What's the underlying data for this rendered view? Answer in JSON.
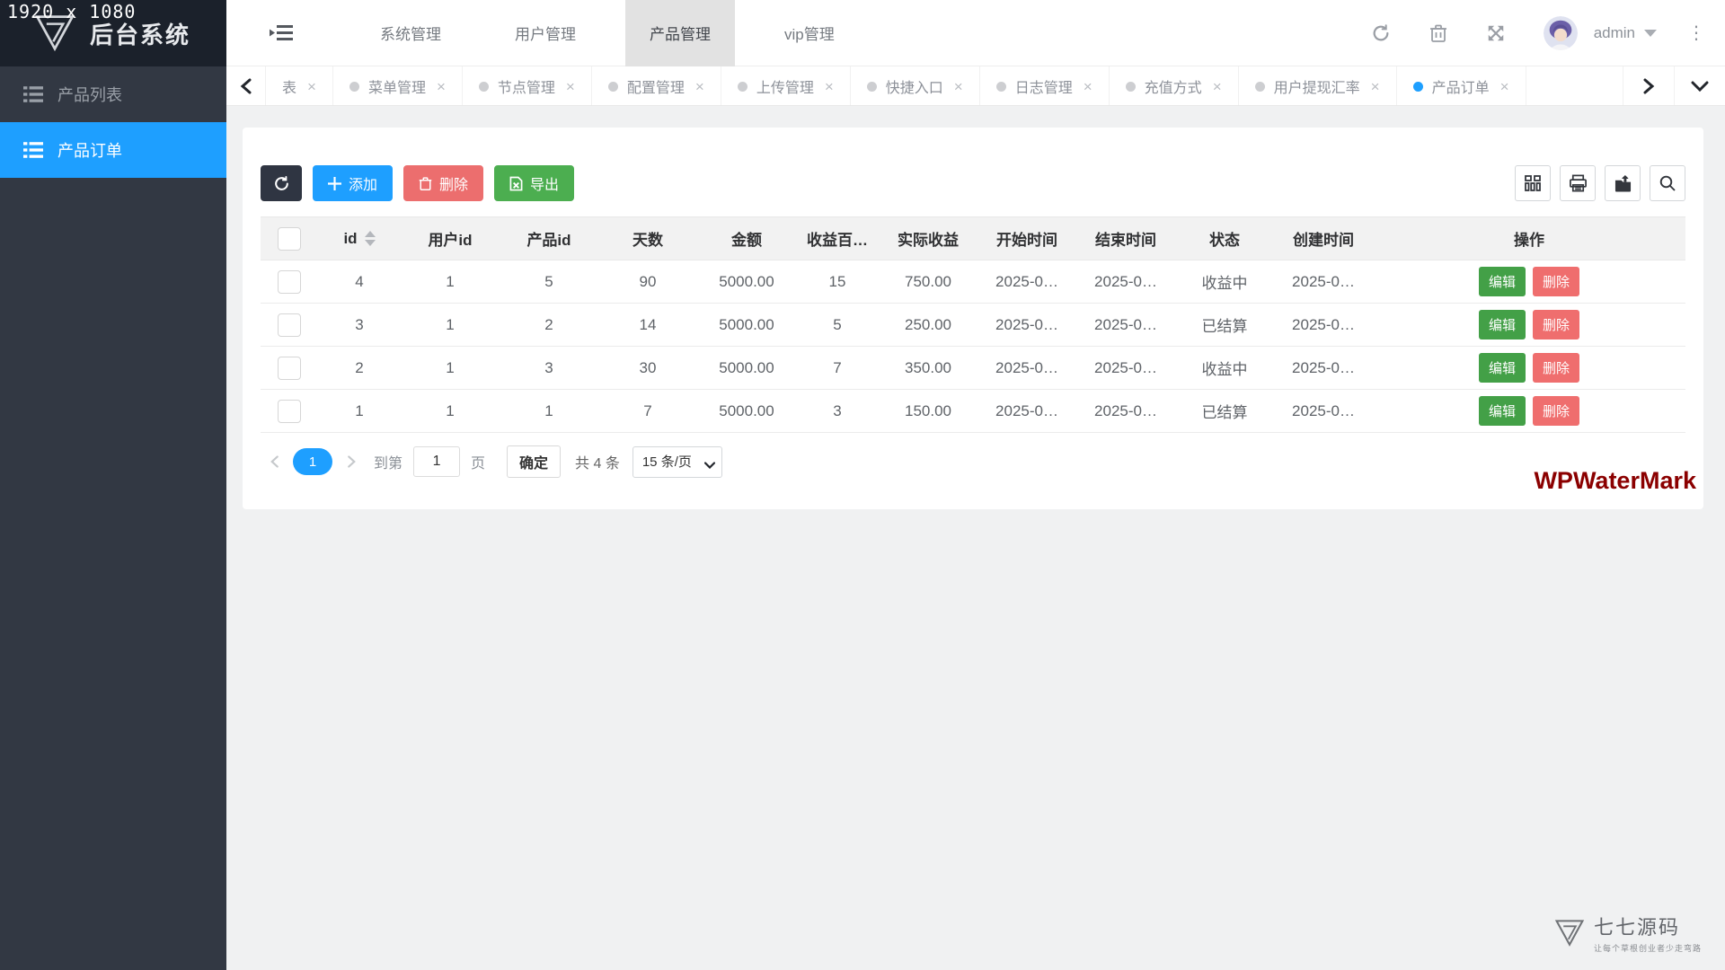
{
  "meta": {
    "resolution_overlay": "1920 x 1080"
  },
  "header": {
    "app_title": "后台系统",
    "nav_items": [
      {
        "label": "系统管理",
        "active": false
      },
      {
        "label": "用户管理",
        "active": false
      },
      {
        "label": "产品管理",
        "active": true
      },
      {
        "label": "vip管理",
        "active": false
      }
    ],
    "user": {
      "name": "admin"
    }
  },
  "tabbar": {
    "tabs": [
      {
        "label": "表",
        "dot": false,
        "active": false
      },
      {
        "label": "菜单管理",
        "dot": true,
        "active": false
      },
      {
        "label": "节点管理",
        "dot": true,
        "active": false
      },
      {
        "label": "配置管理",
        "dot": true,
        "active": false
      },
      {
        "label": "上传管理",
        "dot": true,
        "active": false
      },
      {
        "label": "快捷入口",
        "dot": true,
        "active": false
      },
      {
        "label": "日志管理",
        "dot": true,
        "active": false
      },
      {
        "label": "充值方式",
        "dot": true,
        "active": false
      },
      {
        "label": "用户提现汇率",
        "dot": true,
        "active": false
      },
      {
        "label": "产品订单",
        "dot": true,
        "active": true
      }
    ],
    "close_icon": "×"
  },
  "sidebar": {
    "items": [
      {
        "label": "产品列表",
        "active": false
      },
      {
        "label": "产品订单",
        "active": true
      }
    ]
  },
  "toolbar": {
    "add_label": "添加",
    "delete_label": "删除",
    "export_label": "导出",
    "right_icons": [
      "columns-icon",
      "printer-icon",
      "export-file-icon",
      "search-icon"
    ]
  },
  "table": {
    "columns": [
      "id",
      "用户id",
      "产品id",
      "天数",
      "金额",
      "收益百…",
      "实际收益",
      "开始时间",
      "结束时间",
      "状态",
      "创建时间",
      "操作"
    ],
    "rows": [
      {
        "id": "4",
        "user_id": "1",
        "product_id": "5",
        "days": "90",
        "amount": "5000.00",
        "percent": "15",
        "income": "750.00",
        "start": "2025-0…",
        "end": "2025-0…",
        "status": "收益中",
        "created": "2025-0…"
      },
      {
        "id": "3",
        "user_id": "1",
        "product_id": "2",
        "days": "14",
        "amount": "5000.00",
        "percent": "5",
        "income": "250.00",
        "start": "2025-0…",
        "end": "2025-0…",
        "status": "已结算",
        "created": "2025-0…"
      },
      {
        "id": "2",
        "user_id": "1",
        "product_id": "3",
        "days": "30",
        "amount": "5000.00",
        "percent": "7",
        "income": "350.00",
        "start": "2025-0…",
        "end": "2025-0…",
        "status": "收益中",
        "created": "2025-0…"
      },
      {
        "id": "1",
        "user_id": "1",
        "product_id": "1",
        "days": "7",
        "amount": "5000.00",
        "percent": "3",
        "income": "150.00",
        "start": "2025-0…",
        "end": "2025-0…",
        "status": "已结算",
        "created": "2025-0…"
      }
    ],
    "row_actions": {
      "edit": "编辑",
      "delete": "删除"
    }
  },
  "pagination": {
    "current_page": "1",
    "goto_prefix": "到第",
    "goto_value": "1",
    "goto_suffix": "页",
    "confirm_label": "确定",
    "total_label": "共 4 条",
    "page_size_label": "15 条/页"
  },
  "watermark": "WPWaterMark",
  "footer_brand": {
    "title": "七七源码",
    "tagline": "让每个草根创业者少走弯路"
  },
  "colors": {
    "primary": "#1e9fff",
    "logo_bg": "#1b212b",
    "sidebar_bg": "#323843",
    "dark_button": "#2f3542",
    "danger": "#ec6e6e",
    "edit_green": "#43a047",
    "export_green": "#4cae50",
    "nav_active_bg": "#e2e2e2",
    "table_header_bg": "#f2f2f2",
    "watermark_red": "#8b0000"
  }
}
